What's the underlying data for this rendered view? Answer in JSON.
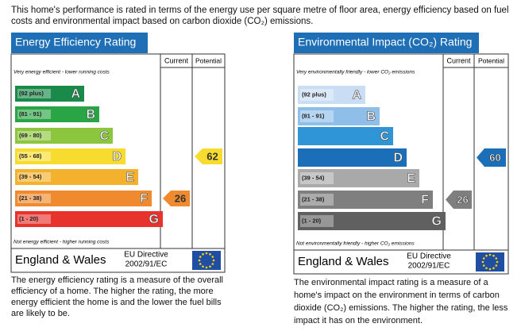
{
  "intro": "This home's performance is rated in terms of the energy use per square metre of floor area, energy efficiency based on fuel costs and environmental impact based on carbon dioxide (CO₂) emissions.",
  "panels": [
    {
      "title": "Energy Efficiency Rating",
      "col_current": "Current",
      "col_potential": "Potential",
      "top_note": "Very energy efficient - lower running costs",
      "bottom_note": "Not energy efficient - higher running costs",
      "bands": [
        {
          "range": "(92 plus)",
          "letter": "A",
          "color": "#1a8a4a"
        },
        {
          "range": "(81 - 91)",
          "letter": "B",
          "color": "#2aa546"
        },
        {
          "range": "(69 - 80)",
          "letter": "C",
          "color": "#8cc63f"
        },
        {
          "range": "(55 - 68)",
          "letter": "D",
          "color": "#f7dc2f"
        },
        {
          "range": "(39 - 54)",
          "letter": "E",
          "color": "#f4b12e"
        },
        {
          "range": "(21 - 38)",
          "letter": "F",
          "color": "#ef8a2e"
        },
        {
          "range": "(1 - 20)",
          "letter": "G",
          "color": "#e8332c"
        }
      ],
      "current": 26,
      "potential": 62,
      "country": "England & Wales",
      "directive": [
        "EU Directive",
        "2002/91/EC"
      ],
      "description": "The energy efficiency rating is a measure of the overall efficiency of a home. The higher the rating, the more energy efficient the home is and the lower the fuel bills are likely to be."
    },
    {
      "title": "Environmental Impact (CO₂) Rating",
      "col_current": "Current",
      "col_potential": "Potential",
      "top_note": "Very environmentally friendly - lower CO₂ emissions",
      "bottom_note": "Not environmentally friendly - higher CO₂ emissions",
      "bands": [
        {
          "range": "(92 plus)",
          "letter": "A",
          "color": "#c9def5"
        },
        {
          "range": "(81 - 91)",
          "letter": "B",
          "color": "#8fbfe8"
        },
        {
          "range": null,
          "letter": "C",
          "color": "#2f95d6"
        },
        {
          "range": null,
          "letter": "D",
          "color": "#1a6fb8"
        },
        {
          "range": "(39 - 54)",
          "letter": "E",
          "color": "#a9a9a9"
        },
        {
          "range": "(21 - 38)",
          "letter": "F",
          "color": "#7f7f7f"
        },
        {
          "range": "(1 - 20)",
          "letter": "G",
          "color": "#606060"
        }
      ],
      "current": 26,
      "potential": 60,
      "country": "England & Wales",
      "directive": [
        "EU Directive",
        "2002/91/EC"
      ],
      "description": "The environmental impact rating is a measure of a home's impact on the environment in terms of carbon dioxide (CO₂) emissions. The higher the rating, the less impact it has on the environment."
    }
  ]
}
